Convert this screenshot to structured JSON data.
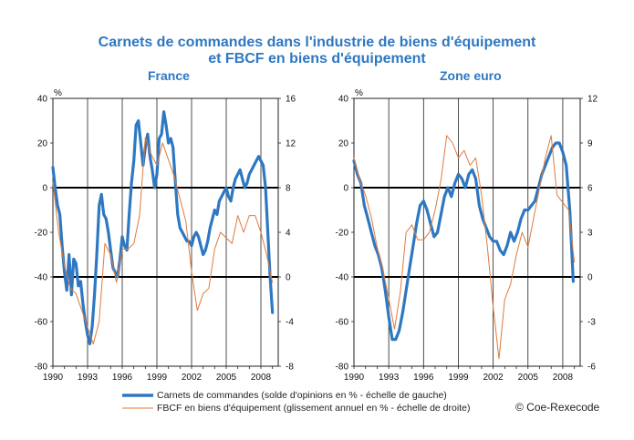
{
  "title_line1": "Carnets de commandes dans l'industrie de biens d'équipement",
  "title_line2": "et FBCF en biens d'équipement",
  "legend": {
    "orders": "Carnets de commandes  (solde d'opinions en % - échelle de gauche)",
    "fbcf": "FBCF en biens d'équipement (glissement annuel en % - échelle de droite)"
  },
  "copyright": "© Coe-Rexecode",
  "colors": {
    "orders": "#2e78c2",
    "fbcf": "#e07a3a",
    "title": "#2e78c2"
  },
  "chart_data": [
    {
      "type": "line",
      "title": "France",
      "left_unit": "%",
      "x_ticks": [
        "1990",
        "1993",
        "1996",
        "1999",
        "2002",
        "2005",
        "2008"
      ],
      "x_range": [
        1990,
        2009.5
      ],
      "y_left": {
        "range": [
          -80,
          40
        ],
        "ticks": [
          "40",
          "20",
          "0",
          "-20",
          "-40",
          "-60",
          "-80"
        ]
      },
      "y_right": {
        "range": [
          -8,
          16
        ],
        "ticks": [
          "16",
          "12",
          "8",
          "4",
          "0",
          "-4",
          "-8"
        ]
      },
      "series": [
        {
          "name": "Carnets de commandes  (solde d'opinions en % - échelle de gauche)",
          "axis": "left",
          "x": [
            1990.0,
            1990.2,
            1990.4,
            1990.6,
            1990.8,
            1991.0,
            1991.2,
            1991.4,
            1991.6,
            1991.8,
            1992.0,
            1992.2,
            1992.4,
            1992.6,
            1992.8,
            1993.0,
            1993.2,
            1993.4,
            1993.6,
            1993.8,
            1994.0,
            1994.2,
            1994.4,
            1994.6,
            1994.8,
            1995.0,
            1995.2,
            1995.4,
            1995.6,
            1995.8,
            1996.0,
            1996.2,
            1996.4,
            1996.6,
            1996.8,
            1997.0,
            1997.2,
            1997.4,
            1997.6,
            1997.8,
            1998.0,
            1998.2,
            1998.4,
            1998.6,
            1998.8,
            1999.0,
            1999.2,
            1999.4,
            1999.6,
            1999.8,
            2000.0,
            2000.2,
            2000.4,
            2000.6,
            2000.8,
            2001.0,
            2001.2,
            2001.4,
            2001.6,
            2001.8,
            2002.0,
            2002.2,
            2002.4,
            2002.6,
            2002.8,
            2003.0,
            2003.2,
            2003.4,
            2003.6,
            2003.8,
            2004.0,
            2004.2,
            2004.4,
            2004.6,
            2004.8,
            2005.0,
            2005.2,
            2005.4,
            2005.6,
            2005.8,
            2006.0,
            2006.2,
            2006.4,
            2006.6,
            2006.8,
            2007.0,
            2007.2,
            2007.4,
            2007.6,
            2007.8,
            2008.0,
            2008.2,
            2008.4,
            2008.6,
            2008.8,
            2009.0
          ],
          "values": [
            9,
            0,
            -8,
            -12,
            -26,
            -38,
            -46,
            -30,
            -48,
            -32,
            -34,
            -44,
            -42,
            -52,
            -60,
            -66,
            -70,
            -62,
            -48,
            -30,
            -8,
            -3,
            -12,
            -14,
            -20,
            -28,
            -36,
            -38,
            -40,
            -32,
            -22,
            -26,
            -28,
            -12,
            2,
            12,
            28,
            30,
            20,
            10,
            18,
            24,
            14,
            8,
            0,
            6,
            22,
            24,
            34,
            28,
            20,
            22,
            18,
            2,
            -12,
            -18,
            -20,
            -22,
            -24,
            -24,
            -26,
            -22,
            -20,
            -22,
            -26,
            -30,
            -28,
            -24,
            -18,
            -14,
            -10,
            -12,
            -6,
            -4,
            -2,
            0,
            -4,
            -6,
            0,
            4,
            6,
            8,
            4,
            0,
            2,
            6,
            8,
            10,
            12,
            14,
            12,
            10,
            0,
            -20,
            -40,
            -56
          ]
        },
        {
          "name": "FBCF en biens d'équipement (glissement annuel en % - échelle de droite)",
          "axis": "right",
          "x": [
            1990.0,
            1990.5,
            1991.0,
            1991.5,
            1992.0,
            1992.5,
            1993.0,
            1993.5,
            1994.0,
            1994.5,
            1995.0,
            1995.5,
            1996.0,
            1996.5,
            1997.0,
            1997.5,
            1998.0,
            1998.5,
            1999.0,
            1999.5,
            2000.0,
            2000.5,
            2001.0,
            2001.5,
            2002.0,
            2002.5,
            2003.0,
            2003.5,
            2004.0,
            2004.5,
            2005.0,
            2005.5,
            2006.0,
            2006.5,
            2007.0,
            2007.5,
            2008.0,
            2008.5,
            2009.0
          ],
          "values": [
            8.5,
            4,
            1,
            -1,
            -1.5,
            -3,
            -4.5,
            -6,
            -4,
            3,
            2,
            -0.5,
            2.5,
            2.5,
            3,
            5.5,
            12.5,
            11,
            10,
            12,
            10.5,
            9,
            7,
            5,
            0.5,
            -3,
            -1.5,
            -1,
            2.5,
            4,
            3.5,
            3,
            5.5,
            4,
            5.5,
            5.5,
            4,
            2,
            -0.5
          ]
        }
      ]
    },
    {
      "type": "line",
      "title": "Zone euro",
      "left_unit": "%",
      "x_ticks": [
        "1990",
        "1993",
        "1996",
        "1999",
        "2002",
        "2005",
        "2008"
      ],
      "x_range": [
        1990,
        2009.5
      ],
      "y_left": {
        "range": [
          -80,
          40
        ],
        "ticks": [
          "40",
          "20",
          "0",
          "-20",
          "-40",
          "-60",
          "-80"
        ]
      },
      "y_right": {
        "range": [
          -6,
          12
        ],
        "ticks": [
          "12",
          "9",
          "6",
          "3",
          "0",
          "-3",
          "-6"
        ]
      },
      "series": [
        {
          "name": "Carnets de commandes  (solde d'opinions en % - échelle de gauche)",
          "axis": "left",
          "x": [
            1990.0,
            1990.3,
            1990.6,
            1990.9,
            1991.2,
            1991.5,
            1991.8,
            1992.1,
            1992.4,
            1992.7,
            1993.0,
            1993.3,
            1993.6,
            1993.9,
            1994.2,
            1994.5,
            1994.8,
            1995.1,
            1995.4,
            1995.7,
            1996.0,
            1996.3,
            1996.6,
            1996.9,
            1997.2,
            1997.5,
            1997.8,
            1998.1,
            1998.4,
            1998.7,
            1999.0,
            1999.3,
            1999.6,
            1999.9,
            2000.2,
            2000.5,
            2000.8,
            2001.1,
            2001.4,
            2001.7,
            2002.0,
            2002.3,
            2002.6,
            2002.9,
            2003.2,
            2003.5,
            2003.8,
            2004.1,
            2004.4,
            2004.7,
            2005.0,
            2005.3,
            2005.6,
            2005.9,
            2006.2,
            2006.5,
            2006.8,
            2007.1,
            2007.4,
            2007.7,
            2008.0,
            2008.3,
            2008.6,
            2008.9
          ],
          "values": [
            12,
            6,
            2,
            -8,
            -14,
            -20,
            -26,
            -30,
            -36,
            -46,
            -58,
            -68,
            -68,
            -64,
            -56,
            -46,
            -36,
            -26,
            -16,
            -8,
            -6,
            -10,
            -16,
            -22,
            -20,
            -12,
            -4,
            0,
            -4,
            2,
            6,
            4,
            0,
            6,
            8,
            4,
            -8,
            -14,
            -18,
            -22,
            -24,
            -24,
            -28,
            -30,
            -26,
            -20,
            -24,
            -20,
            -14,
            -10,
            -10,
            -8,
            -6,
            0,
            6,
            10,
            14,
            18,
            20,
            20,
            16,
            10,
            -10,
            -42
          ]
        },
        {
          "name": "FBCF en biens d'équipement (glissement annuel en % - échelle de droite)",
          "axis": "right",
          "x": [
            1990.0,
            1990.5,
            1991.0,
            1991.5,
            1992.0,
            1992.5,
            1993.0,
            1993.5,
            1994.0,
            1994.5,
            1995.0,
            1995.5,
            1996.0,
            1996.5,
            1997.0,
            1997.5,
            1998.0,
            1998.5,
            1999.0,
            1999.5,
            2000.0,
            2000.5,
            2001.0,
            2001.5,
            2002.0,
            2002.5,
            2003.0,
            2003.5,
            2004.0,
            2004.5,
            2005.0,
            2005.5,
            2006.0,
            2006.5,
            2007.0,
            2007.5,
            2008.0,
            2008.5,
            2009.0
          ],
          "values": [
            8,
            6.5,
            5.5,
            4,
            2,
            0.5,
            -1.5,
            -3.5,
            -1,
            3,
            3.5,
            2.5,
            2.5,
            3,
            4.5,
            6.5,
            9.5,
            9,
            8,
            8.5,
            7.5,
            8,
            5.5,
            2,
            -2,
            -5.5,
            -1.5,
            -0.5,
            1.5,
            3,
            2,
            4,
            6,
            8,
            9.5,
            5.5,
            5,
            4.5,
            1
          ]
        }
      ]
    }
  ]
}
